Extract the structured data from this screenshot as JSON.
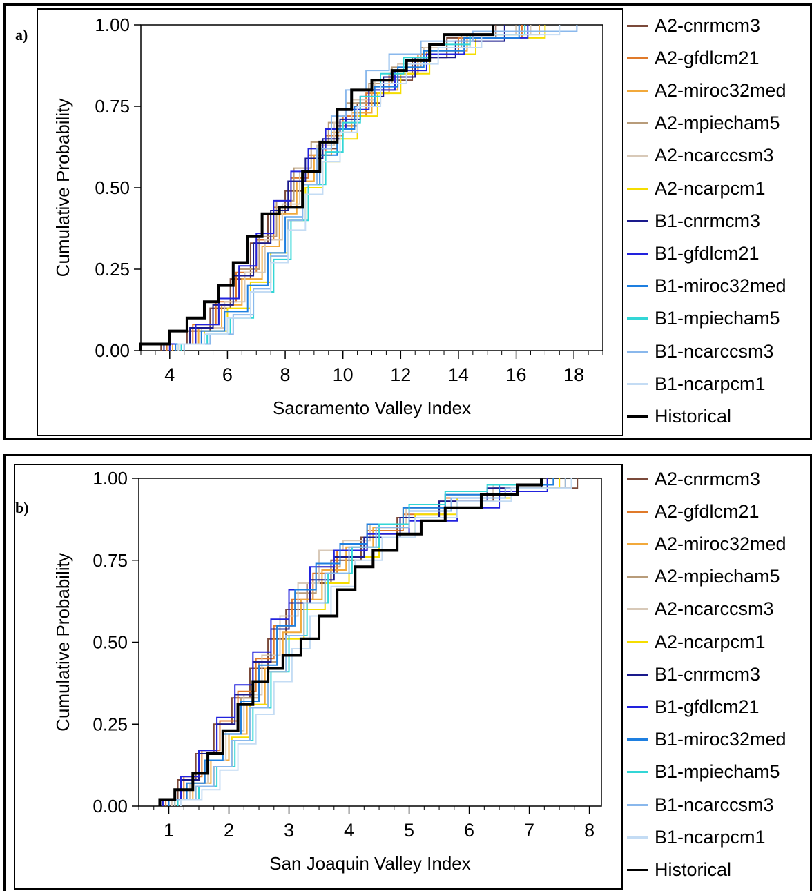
{
  "chart_data": [
    {
      "panel_label": "a)",
      "type": "line",
      "step": true,
      "xlabel": "Sacramento Valley Index",
      "ylabel": "Cumulative Probability",
      "xlim": [
        3,
        19
      ],
      "ylim": [
        0,
        1
      ],
      "xticks": [
        "4",
        "6",
        "8",
        "10",
        "12",
        "14",
        "16",
        "18"
      ],
      "yticks": [
        "0.00",
        "0.25",
        "0.50",
        "0.75",
        "1.00"
      ],
      "legend_position": "right",
      "series": [
        {
          "name": "A2-cnrmcm3",
          "color": "#7b4a3a",
          "x": [
            3.7,
            4.6,
            5.4,
            6.1,
            6.8,
            7.4,
            8.0,
            8.6,
            9.2,
            9.8,
            10.5,
            11.3,
            12.4,
            13.6,
            15.3
          ],
          "y": [
            0.02,
            0.06,
            0.13,
            0.22,
            0.33,
            0.42,
            0.49,
            0.55,
            0.62,
            0.69,
            0.76,
            0.83,
            0.9,
            0.96,
            1.0
          ]
        },
        {
          "name": "A2-gfdlcm21",
          "color": "#e07a2a",
          "x": [
            3.9,
            4.8,
            5.6,
            6.3,
            7.0,
            7.6,
            8.2,
            8.8,
            9.4,
            10.0,
            10.8,
            11.6,
            12.6,
            14.0,
            16.2
          ],
          "y": [
            0.02,
            0.08,
            0.15,
            0.24,
            0.34,
            0.44,
            0.53,
            0.6,
            0.66,
            0.72,
            0.79,
            0.85,
            0.91,
            0.96,
            1.0
          ]
        },
        {
          "name": "A2-miroc32med",
          "color": "#f2a93b",
          "x": [
            4.1,
            5.0,
            5.8,
            6.5,
            7.2,
            7.8,
            8.4,
            9.0,
            9.6,
            10.3,
            11.0,
            11.9,
            12.9,
            14.3,
            16.8
          ],
          "y": [
            0.02,
            0.07,
            0.14,
            0.22,
            0.32,
            0.42,
            0.52,
            0.6,
            0.67,
            0.73,
            0.8,
            0.86,
            0.92,
            0.97,
            1.0
          ]
        },
        {
          "name": "A2-mpiecham5",
          "color": "#b89c7a",
          "x": [
            4.0,
            4.9,
            5.7,
            6.4,
            7.1,
            7.7,
            8.3,
            8.9,
            9.5,
            10.1,
            10.9,
            11.7,
            12.7,
            14.1,
            16.0
          ],
          "y": [
            0.02,
            0.08,
            0.16,
            0.25,
            0.35,
            0.46,
            0.56,
            0.64,
            0.7,
            0.76,
            0.82,
            0.87,
            0.93,
            0.97,
            1.0
          ]
        },
        {
          "name": "A2-ncarccsm3",
          "color": "#d8c9b8",
          "x": [
            4.2,
            5.1,
            5.9,
            6.6,
            7.3,
            7.9,
            8.5,
            9.1,
            9.7,
            10.3,
            11.1,
            11.9,
            12.8,
            14.4,
            16.5
          ],
          "y": [
            0.02,
            0.07,
            0.15,
            0.24,
            0.34,
            0.45,
            0.55,
            0.63,
            0.7,
            0.77,
            0.83,
            0.88,
            0.93,
            0.97,
            1.0
          ]
        },
        {
          "name": "A2-ncarpcm1",
          "color": "#f5dd00",
          "x": [
            4.3,
            5.2,
            6.0,
            6.8,
            7.5,
            8.1,
            8.7,
            9.3,
            9.9,
            10.5,
            11.2,
            12.0,
            13.0,
            14.6,
            17.0
          ],
          "y": [
            0.02,
            0.06,
            0.13,
            0.21,
            0.3,
            0.4,
            0.5,
            0.58,
            0.65,
            0.72,
            0.79,
            0.85,
            0.91,
            0.96,
            1.0
          ]
        },
        {
          "name": "B1-cnrmcm3",
          "color": "#1a1a8c",
          "x": [
            3.8,
            4.7,
            5.5,
            6.2,
            6.9,
            7.5,
            8.1,
            8.7,
            9.3,
            9.9,
            10.6,
            11.4,
            12.5,
            13.9,
            15.6
          ],
          "y": [
            0.02,
            0.07,
            0.14,
            0.23,
            0.33,
            0.43,
            0.52,
            0.59,
            0.65,
            0.71,
            0.78,
            0.84,
            0.9,
            0.95,
            1.0
          ]
        },
        {
          "name": "B1-gfdlcm21",
          "color": "#2222dd",
          "x": [
            4.0,
            4.9,
            5.7,
            6.4,
            7.0,
            7.6,
            8.2,
            8.8,
            9.4,
            10.1,
            10.9,
            11.8,
            12.9,
            14.2,
            16.4
          ],
          "y": [
            0.02,
            0.08,
            0.16,
            0.26,
            0.36,
            0.46,
            0.55,
            0.62,
            0.68,
            0.74,
            0.8,
            0.86,
            0.91,
            0.96,
            1.0
          ]
        },
        {
          "name": "B1-miroc32med",
          "color": "#1e7fe0",
          "x": [
            4.2,
            5.1,
            5.9,
            6.7,
            7.4,
            8.0,
            8.6,
            9.2,
            9.8,
            10.4,
            11.1,
            11.9,
            12.8,
            14.2,
            16.1
          ],
          "y": [
            0.02,
            0.06,
            0.12,
            0.2,
            0.3,
            0.41,
            0.51,
            0.6,
            0.68,
            0.75,
            0.81,
            0.87,
            0.92,
            0.96,
            1.0
          ]
        },
        {
          "name": "B1-mpiecham5",
          "color": "#33d6d6",
          "x": [
            4.4,
            5.3,
            6.1,
            6.9,
            7.6,
            8.2,
            8.8,
            9.4,
            10.0,
            10.6,
            11.3,
            12.1,
            13.0,
            14.4,
            16.3
          ],
          "y": [
            0.02,
            0.05,
            0.1,
            0.18,
            0.28,
            0.4,
            0.51,
            0.61,
            0.7,
            0.78,
            0.85,
            0.9,
            0.94,
            0.97,
            1.0
          ]
        },
        {
          "name": "B1-ncarccsm3",
          "color": "#8ab8ec",
          "x": [
            4.5,
            5.4,
            6.2,
            6.9,
            7.5,
            8.1,
            8.6,
            9.1,
            9.6,
            10.1,
            10.8,
            11.6,
            12.7,
            14.5,
            18.1
          ],
          "y": [
            0.02,
            0.05,
            0.11,
            0.19,
            0.29,
            0.4,
            0.51,
            0.62,
            0.72,
            0.8,
            0.86,
            0.91,
            0.95,
            0.98,
            1.0
          ]
        },
        {
          "name": "B1-ncarpcm1",
          "color": "#c4dcf4",
          "x": [
            4.3,
            5.2,
            6.0,
            6.8,
            7.5,
            8.1,
            8.7,
            9.3,
            9.9,
            10.5,
            11.3,
            12.2,
            13.3,
            14.8,
            17.5
          ],
          "y": [
            0.02,
            0.05,
            0.1,
            0.18,
            0.27,
            0.37,
            0.48,
            0.58,
            0.67,
            0.75,
            0.82,
            0.88,
            0.93,
            0.97,
            1.0
          ]
        },
        {
          "name": "Historical",
          "color": "#000000",
          "x": [
            3.0,
            4.0,
            4.6,
            5.2,
            5.7,
            6.2,
            6.7,
            7.2,
            7.8,
            8.6,
            9.2,
            9.8,
            10.3,
            11.0,
            11.7,
            12.2,
            13.0,
            13.5,
            15.2
          ],
          "y": [
            0.02,
            0.06,
            0.1,
            0.15,
            0.2,
            0.27,
            0.35,
            0.42,
            0.44,
            0.55,
            0.64,
            0.74,
            0.8,
            0.83,
            0.86,
            0.89,
            0.94,
            0.97,
            1.0
          ]
        }
      ]
    },
    {
      "panel_label": "b)",
      "type": "line",
      "step": true,
      "xlabel": "San Joaquin Valley Index",
      "ylabel": "Cumulative Probability",
      "xlim": [
        0.5,
        8.2
      ],
      "ylim": [
        0,
        1
      ],
      "xticks": [
        "1",
        "2",
        "3",
        "4",
        "5",
        "6",
        "7",
        "8"
      ],
      "yticks": [
        "0.00",
        "0.25",
        "0.50",
        "0.75",
        "1.00"
      ],
      "legend_position": "right",
      "series": [
        {
          "name": "A2-cnrmcm3",
          "color": "#7b4a3a",
          "x": [
            0.85,
            1.15,
            1.45,
            1.75,
            2.05,
            2.35,
            2.65,
            2.95,
            3.3,
            3.7,
            4.2,
            4.8,
            5.5,
            6.4,
            7.8
          ],
          "y": [
            0.02,
            0.08,
            0.16,
            0.25,
            0.33,
            0.42,
            0.51,
            0.6,
            0.68,
            0.75,
            0.82,
            0.88,
            0.93,
            0.97,
            1.0
          ]
        },
        {
          "name": "A2-gfdlcm21",
          "color": "#e07a2a",
          "x": [
            0.95,
            1.25,
            1.55,
            1.85,
            2.15,
            2.45,
            2.75,
            3.05,
            3.4,
            3.8,
            4.3,
            4.9,
            5.6,
            6.5,
            7.5
          ],
          "y": [
            0.02,
            0.09,
            0.17,
            0.26,
            0.35,
            0.45,
            0.55,
            0.63,
            0.71,
            0.78,
            0.84,
            0.89,
            0.94,
            0.97,
            1.0
          ]
        },
        {
          "name": "A2-miroc32med",
          "color": "#f2a93b",
          "x": [
            1.1,
            1.4,
            1.7,
            2.0,
            2.3,
            2.6,
            2.9,
            3.2,
            3.55,
            3.95,
            4.4,
            5.0,
            5.7,
            6.6,
            7.6
          ],
          "y": [
            0.02,
            0.07,
            0.14,
            0.22,
            0.31,
            0.42,
            0.53,
            0.63,
            0.72,
            0.79,
            0.85,
            0.9,
            0.94,
            0.97,
            1.0
          ]
        },
        {
          "name": "A2-mpiecham5",
          "color": "#b89c7a",
          "x": [
            1.0,
            1.3,
            1.6,
            1.9,
            2.2,
            2.5,
            2.8,
            3.1,
            3.45,
            3.85,
            4.3,
            4.9,
            5.6,
            6.5,
            7.4
          ],
          "y": [
            0.02,
            0.07,
            0.14,
            0.23,
            0.33,
            0.44,
            0.55,
            0.65,
            0.73,
            0.8,
            0.86,
            0.91,
            0.95,
            0.98,
            1.0
          ]
        },
        {
          "name": "A2-ncarccsm3",
          "color": "#d8c9b8",
          "x": [
            1.05,
            1.35,
            1.65,
            1.95,
            2.25,
            2.55,
            2.85,
            3.15,
            3.5,
            3.9,
            4.35,
            4.95,
            5.6,
            6.4,
            7.3
          ],
          "y": [
            0.02,
            0.07,
            0.14,
            0.23,
            0.34,
            0.46,
            0.58,
            0.68,
            0.78,
            0.81,
            0.86,
            0.91,
            0.95,
            0.98,
            1.0
          ]
        },
        {
          "name": "A2-ncarpcm1",
          "color": "#f5dd00",
          "x": [
            1.1,
            1.45,
            1.75,
            2.05,
            2.35,
            2.65,
            2.95,
            3.25,
            3.6,
            4.0,
            4.5,
            5.1,
            5.8,
            6.7,
            7.5
          ],
          "y": [
            0.02,
            0.06,
            0.12,
            0.21,
            0.31,
            0.41,
            0.51,
            0.6,
            0.68,
            0.76,
            0.83,
            0.89,
            0.94,
            0.97,
            1.0
          ]
        },
        {
          "name": "B1-cnrmcm3",
          "color": "#1a1a8c",
          "x": [
            0.9,
            1.2,
            1.5,
            1.8,
            2.1,
            2.4,
            2.7,
            3.0,
            3.35,
            3.75,
            4.25,
            4.85,
            5.5,
            6.3,
            7.2
          ],
          "y": [
            0.02,
            0.08,
            0.16,
            0.25,
            0.34,
            0.44,
            0.54,
            0.62,
            0.69,
            0.76,
            0.82,
            0.88,
            0.93,
            0.97,
            1.0
          ]
        },
        {
          "name": "B1-gfdlcm21",
          "color": "#2222dd",
          "x": [
            0.9,
            1.2,
            1.5,
            1.8,
            2.1,
            2.4,
            2.7,
            3.0,
            3.35,
            3.75,
            4.3,
            5.0,
            5.8,
            6.5,
            7.3
          ],
          "y": [
            0.02,
            0.09,
            0.17,
            0.27,
            0.37,
            0.47,
            0.57,
            0.66,
            0.73,
            0.78,
            0.83,
            0.87,
            0.91,
            0.96,
            1.0
          ]
        },
        {
          "name": "B1-miroc32med",
          "color": "#1e7fe0",
          "x": [
            1.0,
            1.3,
            1.6,
            1.9,
            2.2,
            2.5,
            2.8,
            3.1,
            3.45,
            3.85,
            4.3,
            4.9,
            5.6,
            6.5,
            7.4
          ],
          "y": [
            0.02,
            0.07,
            0.14,
            0.22,
            0.32,
            0.43,
            0.55,
            0.66,
            0.74,
            0.8,
            0.86,
            0.91,
            0.95,
            0.98,
            1.0
          ]
        },
        {
          "name": "B1-mpiecham5",
          "color": "#33d6d6",
          "x": [
            1.15,
            1.5,
            1.8,
            2.1,
            2.4,
            2.7,
            3.0,
            3.3,
            3.65,
            4.05,
            4.5,
            5.0,
            5.6,
            6.3,
            7.2
          ],
          "y": [
            0.02,
            0.06,
            0.12,
            0.2,
            0.3,
            0.41,
            0.52,
            0.62,
            0.71,
            0.79,
            0.86,
            0.92,
            0.96,
            0.98,
            1.0
          ]
        },
        {
          "name": "B1-ncarccsm3",
          "color": "#8ab8ec",
          "x": [
            1.1,
            1.45,
            1.75,
            2.05,
            2.35,
            2.65,
            2.95,
            3.25,
            3.6,
            4.0,
            4.45,
            5.0,
            5.7,
            6.6,
            7.6
          ],
          "y": [
            0.02,
            0.06,
            0.12,
            0.2,
            0.3,
            0.41,
            0.52,
            0.62,
            0.71,
            0.79,
            0.85,
            0.9,
            0.94,
            0.97,
            1.0
          ]
        },
        {
          "name": "B1-ncarpcm1",
          "color": "#c4dcf4",
          "x": [
            1.2,
            1.55,
            1.85,
            2.15,
            2.45,
            2.75,
            3.05,
            3.35,
            3.7,
            4.1,
            4.55,
            5.1,
            5.8,
            6.7,
            7.7
          ],
          "y": [
            0.02,
            0.05,
            0.11,
            0.19,
            0.28,
            0.38,
            0.48,
            0.58,
            0.67,
            0.75,
            0.82,
            0.88,
            0.93,
            0.97,
            1.0
          ]
        },
        {
          "name": "Historical",
          "color": "#000000",
          "x": [
            0.85,
            1.1,
            1.4,
            1.65,
            1.9,
            2.15,
            2.4,
            2.65,
            2.9,
            3.2,
            3.5,
            3.8,
            4.1,
            4.4,
            4.8,
            5.2,
            5.6,
            6.2,
            6.8,
            7.2
          ],
          "y": [
            0.02,
            0.05,
            0.1,
            0.16,
            0.23,
            0.31,
            0.38,
            0.42,
            0.46,
            0.51,
            0.58,
            0.66,
            0.73,
            0.78,
            0.83,
            0.87,
            0.91,
            0.95,
            0.98,
            1.0
          ]
        }
      ]
    }
  ]
}
